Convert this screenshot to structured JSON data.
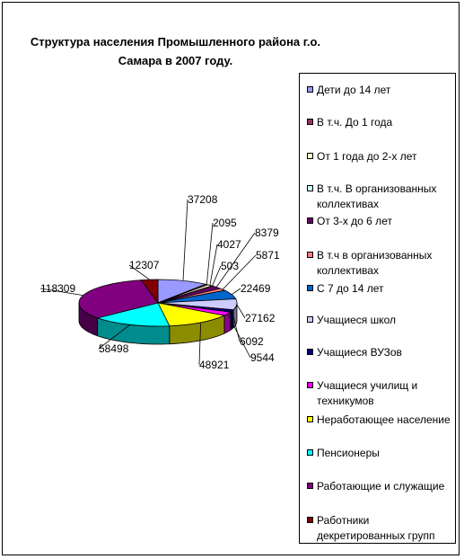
{
  "title_line1": "Структура населения Промышленного района г.о.",
  "title_line2": "Самара в 2007 году.",
  "chart_data": {
    "type": "pie",
    "title": "Структура населения Промышленного района г.о. Самара в 2007 году.",
    "legend_position": "right",
    "categories": [
      "Дети до 14 лет",
      "В т.ч. До 1 года",
      "От 1 года до 2-х лет",
      "В т.ч. В организованных коллективах",
      "От 3-х до 6 лет",
      "В т.ч в организованных коллективах",
      "С 7 до 14 лет",
      "Учащиеся школ",
      "Учащиеся ВУЗов",
      "Учащиеся училищ и техникумов",
      "Неработающее население",
      "Пенсионеры",
      "Работающие и служащие",
      "Работники декретированных групп"
    ],
    "values": [
      37208,
      2095,
      4027,
      503,
      8379,
      5871,
      22469,
      27162,
      6092,
      9544,
      48921,
      58498,
      118309,
      12307
    ],
    "colors": [
      "#9999FF",
      "#993366",
      "#FFFFCC",
      "#CCFFFF",
      "#660066",
      "#FF8080",
      "#0066CC",
      "#CCCCFF",
      "#000080",
      "#FF00FF",
      "#FFFF00",
      "#00FFFF",
      "#800080",
      "#800000"
    ]
  }
}
